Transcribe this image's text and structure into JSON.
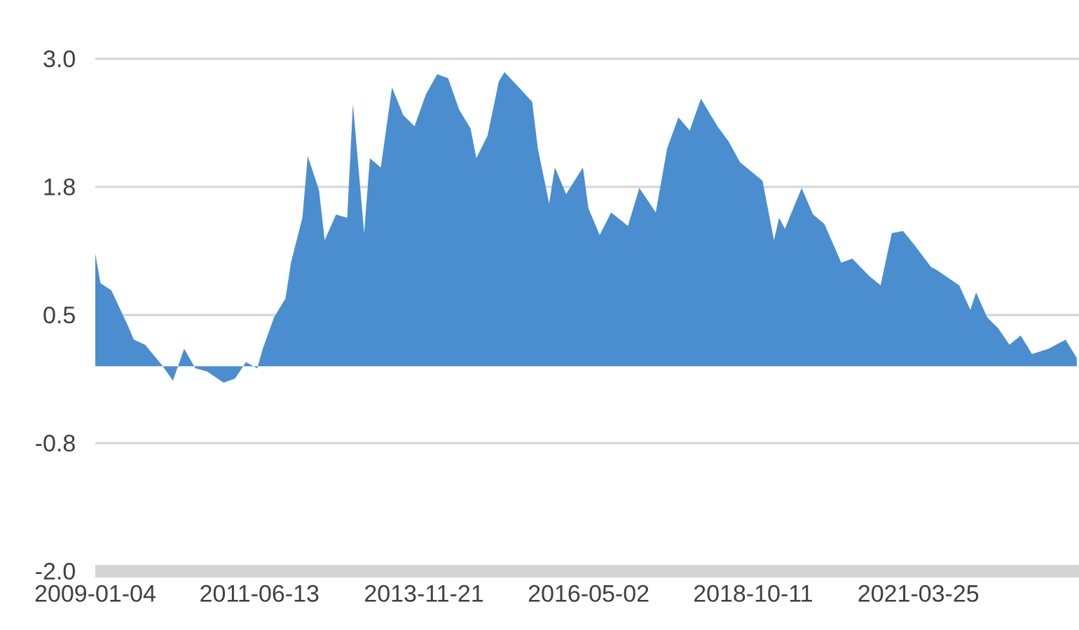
{
  "chart_data": {
    "type": "area",
    "color": "#4a8ecf",
    "grid": "y",
    "xlim": [
      "2009-01-04",
      "2023-08-13"
    ],
    "ylim": [
      -2.0,
      3.0
    ],
    "yticks": [
      {
        "value": -2.0,
        "label": "-2.0"
      },
      {
        "value": -0.75,
        "label": "-0.8"
      },
      {
        "value": 0.5,
        "label": "0.5"
      },
      {
        "value": 1.75,
        "label": "1.8"
      },
      {
        "value": 3.0,
        "label": "3.0"
      }
    ],
    "xticks": [
      "2009-01-04",
      "2011-06-13",
      "2013-11-21",
      "2016-05-02",
      "2018-10-11",
      "2021-03-25"
    ],
    "x": [
      "2009-01-04",
      "2009-02",
      "2009-04",
      "2009-07",
      "2009-08",
      "2009-10",
      "2010-01",
      "2010-03",
      "2010-05",
      "2010-07",
      "2010-09",
      "2010-12",
      "2011-02",
      "2011-04",
      "2011-06",
      "2011-07",
      "2011-09",
      "2011-11",
      "2011-12",
      "2012-02",
      "2012-03",
      "2012-05",
      "2012-06",
      "2012-08",
      "2012-10",
      "2012-11",
      "2013-01",
      "2013-02",
      "2013-04",
      "2013-06",
      "2013-08",
      "2013-10",
      "2013-12",
      "2014-02",
      "2014-04",
      "2014-06",
      "2014-08",
      "2014-09",
      "2014-11",
      "2015-01",
      "2015-02",
      "2015-05",
      "2015-07",
      "2015-08",
      "2015-10",
      "2015-11",
      "2016-01",
      "2016-04",
      "2016-05",
      "2016-07",
      "2016-09",
      "2016-12",
      "2017-02",
      "2017-05",
      "2017-07",
      "2017-09",
      "2017-11",
      "2018-01",
      "2018-04",
      "2018-06",
      "2018-08",
      "2018-12",
      "2019-02",
      "2019-03",
      "2019-04",
      "2019-07",
      "2019-09",
      "2019-11",
      "2020-02",
      "2020-04",
      "2020-07",
      "2020-09",
      "2020-11",
      "2021-01",
      "2021-03",
      "2021-06",
      "2021-07",
      "2021-11",
      "2022-01",
      "2022-02",
      "2022-04",
      "2022-06",
      "2022-08",
      "2022-10",
      "2022-12",
      "2023-03",
      "2023-06",
      "2023-08"
    ],
    "values": [
      1.1,
      0.81,
      0.74,
      0.39,
      0.26,
      0.21,
      0.01,
      -0.14,
      0.17,
      -0.02,
      -0.05,
      -0.16,
      -0.12,
      0.04,
      -0.02,
      0.17,
      0.48,
      0.66,
      1.01,
      1.45,
      2.05,
      1.72,
      1.23,
      1.48,
      1.45,
      2.56,
      1.3,
      2.03,
      1.94,
      2.72,
      2.45,
      2.34,
      2.65,
      2.85,
      2.81,
      2.5,
      2.32,
      2.03,
      2.25,
      2.78,
      2.87,
      2.7,
      2.58,
      2.12,
      1.59,
      1.94,
      1.68,
      1.94,
      1.54,
      1.28,
      1.5,
      1.37,
      1.74,
      1.5,
      2.12,
      2.43,
      2.3,
      2.61,
      2.34,
      2.19,
      1.99,
      1.81,
      1.23,
      1.45,
      1.34,
      1.74,
      1.48,
      1.39,
      1.01,
      1.05,
      0.88,
      0.79,
      1.3,
      1.32,
      1.19,
      0.97,
      0.94,
      0.79,
      0.55,
      0.72,
      0.48,
      0.37,
      0.21,
      0.3,
      0.12,
      0.17,
      0.26,
      0.08
    ]
  }
}
